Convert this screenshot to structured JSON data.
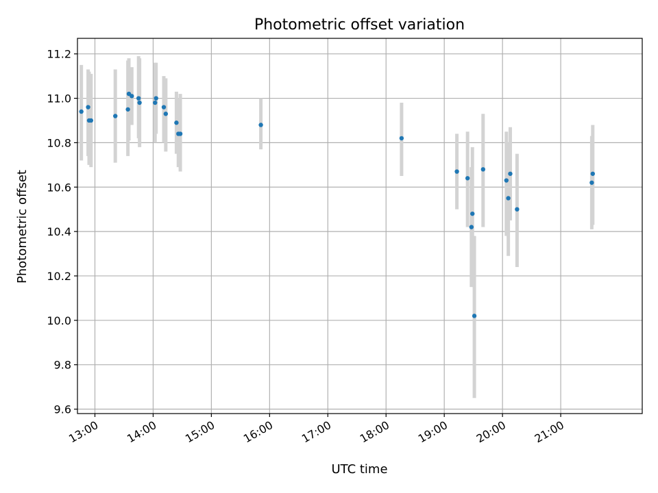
{
  "chart_data": {
    "type": "scatter",
    "title": "Photometric offset variation",
    "xlabel": "UTC time",
    "ylabel": "Photometric offset",
    "x_axis_type": "time",
    "xlim": [
      "12:42",
      "22:24"
    ],
    "ylim": [
      9.58,
      11.27
    ],
    "x_ticks": [
      "13:00",
      "14:00",
      "15:00",
      "16:00",
      "17:00",
      "18:00",
      "19:00",
      "20:00",
      "21:00"
    ],
    "y_ticks": [
      9.6,
      9.8,
      10.0,
      10.2,
      10.4,
      10.6,
      10.8,
      11.0,
      11.2
    ],
    "grid": true,
    "point_color": "#1f77b4",
    "errorbar_color": "#d3d3d3",
    "series": [
      {
        "points": [
          {
            "x": "12:46",
            "y": 10.94,
            "low": 10.72,
            "high": 11.15
          },
          {
            "x": "12:53",
            "y": 10.96,
            "low": 10.74,
            "high": 11.13
          },
          {
            "x": "12:54",
            "y": 10.9,
            "low": 10.7,
            "high": 11.12
          },
          {
            "x": "12:56",
            "y": 10.9,
            "low": 10.69,
            "high": 11.11
          },
          {
            "x": "13:21",
            "y": 10.92,
            "low": 10.71,
            "high": 11.13
          },
          {
            "x": "13:34",
            "y": 10.95,
            "low": 10.74,
            "high": 11.17
          },
          {
            "x": "13:35",
            "y": 11.02,
            "low": 10.81,
            "high": 11.18
          },
          {
            "x": "13:38",
            "y": 11.01,
            "low": 10.88,
            "high": 11.14
          },
          {
            "x": "13:45",
            "y": 11.0,
            "low": 10.82,
            "high": 11.19
          },
          {
            "x": "13:46",
            "y": 10.98,
            "low": 10.78,
            "high": 11.18
          },
          {
            "x": "14:02",
            "y": 10.98,
            "low": 10.8,
            "high": 11.16
          },
          {
            "x": "14:03",
            "y": 11.0,
            "low": 10.84,
            "high": 11.16
          },
          {
            "x": "14:11",
            "y": 10.96,
            "low": 10.8,
            "high": 11.1
          },
          {
            "x": "14:13",
            "y": 10.93,
            "low": 10.76,
            "high": 11.09
          },
          {
            "x": "14:24",
            "y": 10.89,
            "low": 10.75,
            "high": 11.03
          },
          {
            "x": "14:26",
            "y": 10.84,
            "low": 10.69,
            "high": 11.0
          },
          {
            "x": "14:28",
            "y": 10.84,
            "low": 10.67,
            "high": 11.02
          },
          {
            "x": "15:51",
            "y": 10.88,
            "low": 10.77,
            "high": 11.0
          },
          {
            "x": "18:16",
            "y": 10.82,
            "low": 10.65,
            "high": 10.98
          },
          {
            "x": "19:13",
            "y": 10.67,
            "low": 10.5,
            "high": 10.84
          },
          {
            "x": "19:24",
            "y": 10.64,
            "low": 10.42,
            "high": 10.85
          },
          {
            "x": "19:28",
            "y": 10.42,
            "low": 10.15,
            "high": 10.69
          },
          {
            "x": "19:29",
            "y": 10.48,
            "low": 10.15,
            "high": 10.78
          },
          {
            "x": "19:31",
            "y": 10.02,
            "low": 9.65,
            "high": 10.38
          },
          {
            "x": "19:40",
            "y": 10.68,
            "low": 10.42,
            "high": 10.93
          },
          {
            "x": "20:04",
            "y": 10.63,
            "low": 10.38,
            "high": 10.85
          },
          {
            "x": "20:06",
            "y": 10.55,
            "low": 10.29,
            "high": 10.8
          },
          {
            "x": "20:08",
            "y": 10.66,
            "low": 10.45,
            "high": 10.87
          },
          {
            "x": "20:15",
            "y": 10.5,
            "low": 10.24,
            "high": 10.75
          },
          {
            "x": "21:32",
            "y": 10.62,
            "low": 10.41,
            "high": 10.83
          },
          {
            "x": "21:33",
            "y": 10.66,
            "low": 10.43,
            "high": 10.88
          }
        ]
      }
    ]
  }
}
